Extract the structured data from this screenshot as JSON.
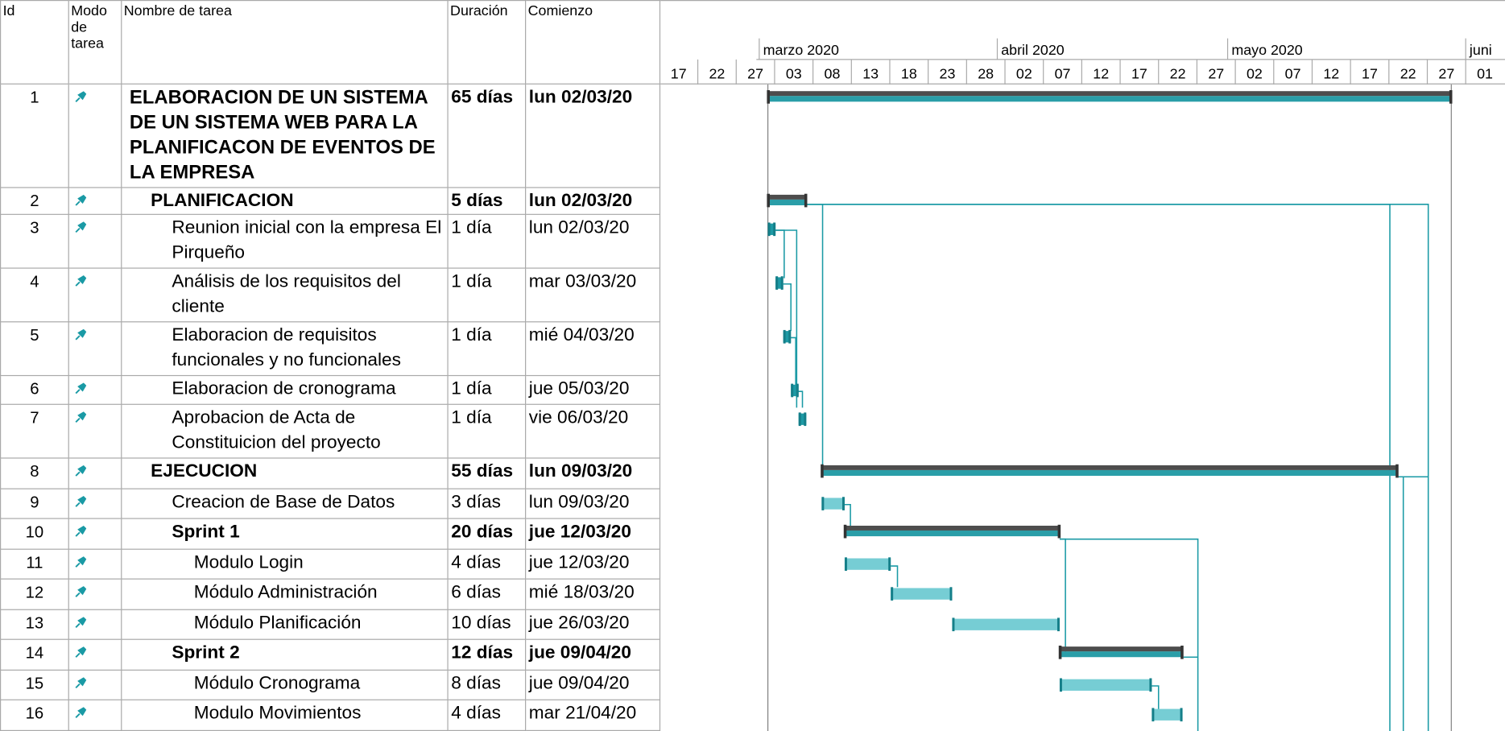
{
  "columns": [
    "Id",
    "Modo de tarea",
    "Nombre de tarea",
    "Duración",
    "Comienzo"
  ],
  "timescale": {
    "months": [
      "marzo 2020",
      "abril 2020",
      "mayo 2020",
      "juni"
    ],
    "days": [
      "17",
      "22",
      "27",
      "03",
      "08",
      "13",
      "18",
      "23",
      "28",
      "02",
      "07",
      "12",
      "17",
      "22",
      "27",
      "02",
      "07",
      "12",
      "17",
      "22",
      "27",
      "01"
    ]
  },
  "tasks": [
    {
      "id": 1,
      "name": "ELABORACION DE UN SISTEMA DE UN SISTEMA WEB PARA LA PLANIFICACON DE EVENTOS DE LA EMPRESA",
      "duration": "65 días",
      "start": "lun 02/03/20"
    },
    {
      "id": 2,
      "name": "PLANIFICACION",
      "duration": "5 días",
      "start": "lun 02/03/20"
    },
    {
      "id": 3,
      "name": "Reunion  inicial con la empresa El Pirqueño",
      "duration": "1 día",
      "start": "lun 02/03/20"
    },
    {
      "id": 4,
      "name": "Análisis de los requisitos del cliente",
      "duration": "1 día",
      "start": "mar 03/03/20"
    },
    {
      "id": 5,
      "name": "Elaboracion de requisitos funcionales y no funcionales",
      "duration": "1 día",
      "start": "mié 04/03/20"
    },
    {
      "id": 6,
      "name": "Elaboracion de cronograma",
      "duration": "1 día",
      "start": "jue 05/03/20"
    },
    {
      "id": 7,
      "name": "Aprobacion de Acta de Constituicion del proyecto",
      "duration": "1 día",
      "start": "vie 06/03/20"
    },
    {
      "id": 8,
      "name": "EJECUCION",
      "duration": "55 días",
      "start": "lun 09/03/20"
    },
    {
      "id": 9,
      "name": "Creacion de Base de Datos",
      "duration": "3 días",
      "start": "lun 09/03/20"
    },
    {
      "id": 10,
      "name": "Sprint 1",
      "duration": "20 días",
      "start": "jue 12/03/20"
    },
    {
      "id": 11,
      "name": "Modulo Login",
      "duration": "4 días",
      "start": "jue 12/03/20"
    },
    {
      "id": 12,
      "name": "Módulo Administración",
      "duration": "6 días",
      "start": "mié 18/03/20"
    },
    {
      "id": 13,
      "name": "Módulo Planificación",
      "duration": "10 días",
      "start": "jue 26/03/20"
    },
    {
      "id": 14,
      "name": "Sprint 2",
      "duration": "12 días",
      "start": "jue 09/04/20"
    },
    {
      "id": 15,
      "name": "Módulo Cronograma",
      "duration": "8 días",
      "start": "jue 09/04/20"
    },
    {
      "id": 16,
      "name": "Modulo Movimientos",
      "duration": "4 días",
      "start": "mar 21/04/20"
    }
  ]
}
